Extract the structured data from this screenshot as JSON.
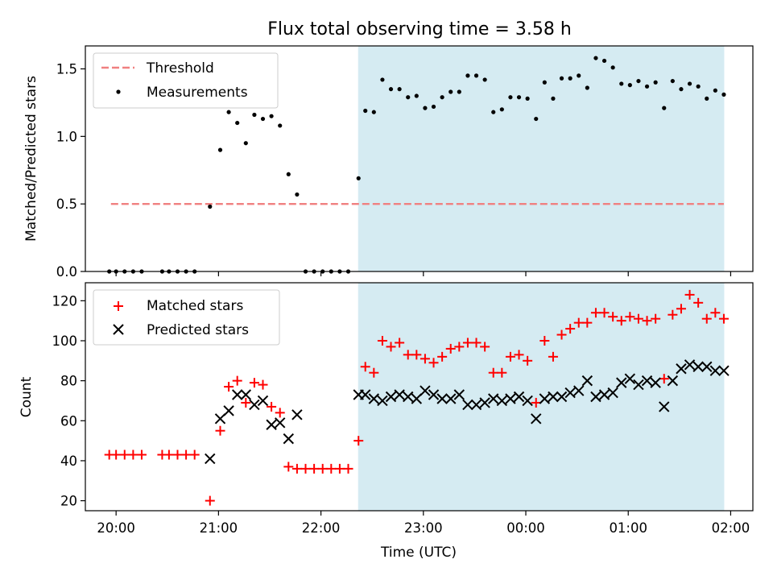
{
  "chart_data": [
    {
      "type": "scatter",
      "title": "Flux total observing time = 3.58 h",
      "ylabel": "Matched/Predicted stars",
      "xlabel": "",
      "ylim": [
        0,
        1.67
      ],
      "yticks": [
        0,
        0.5,
        1.0,
        1.5
      ],
      "ytick_labels": [
        "0.0",
        "0.5",
        "1.0",
        "1.5"
      ],
      "legend_position": "top-left",
      "shaded_span": {
        "start": "22:22",
        "end": "01:56",
        "color": "#add8e6"
      },
      "threshold": {
        "name": "Threshold",
        "value": 0.5,
        "x_start": "19:57",
        "x_end": "01:56",
        "color": "#f08080",
        "style": "dashed"
      },
      "series": [
        {
          "name": "Measurements",
          "marker": "dot",
          "color": "#000000",
          "x": [
            "19:56",
            "20:00",
            "20:05",
            "20:10",
            "20:15",
            "20:27",
            "20:31",
            "20:36",
            "20:41",
            "20:46",
            "20:55",
            "21:01",
            "21:06",
            "21:11",
            "21:16",
            "21:21",
            "21:26",
            "21:31",
            "21:36",
            "21:41",
            "21:46",
            "21:51",
            "21:56",
            "22:01",
            "22:06",
            "22:11",
            "22:16",
            "22:22",
            "22:26",
            "22:31",
            "22:36",
            "22:41",
            "22:46",
            "22:51",
            "22:56",
            "23:01",
            "23:06",
            "23:11",
            "23:16",
            "23:21",
            "23:26",
            "23:31",
            "23:36",
            "23:41",
            "23:46",
            "23:51",
            "23:56",
            "00:01",
            "00:06",
            "00:11",
            "00:16",
            "00:21",
            "00:26",
            "00:31",
            "00:36",
            "00:41",
            "00:46",
            "00:51",
            "00:56",
            "01:01",
            "01:06",
            "01:11",
            "01:16",
            "01:21",
            "01:26",
            "01:31",
            "01:36",
            "01:41",
            "01:46",
            "01:51",
            "01:56"
          ],
          "y": [
            0,
            0,
            0,
            0,
            0,
            0,
            0,
            0,
            0,
            0,
            0.48,
            0.9,
            1.18,
            1.1,
            0.95,
            1.16,
            1.13,
            1.15,
            1.08,
            0.72,
            0.57,
            0,
            0,
            0,
            0,
            0,
            0,
            0.69,
            1.19,
            1.18,
            1.42,
            1.35,
            1.35,
            1.29,
            1.3,
            1.21,
            1.22,
            1.29,
            1.33,
            1.33,
            1.45,
            1.45,
            1.42,
            1.18,
            1.2,
            1.29,
            1.29,
            1.28,
            1.13,
            1.4,
            1.28,
            1.43,
            1.43,
            1.45,
            1.36,
            1.58,
            1.56,
            1.51,
            1.39,
            1.38,
            1.41,
            1.37,
            1.4,
            1.21,
            1.41,
            1.35,
            1.39,
            1.37,
            1.28,
            1.34,
            1.31
          ]
        }
      ]
    },
    {
      "type": "scatter",
      "title": "",
      "ylabel": "Count",
      "xlabel": "Time (UTC)",
      "ylim": [
        15,
        129
      ],
      "yticks": [
        20,
        40,
        60,
        80,
        100,
        120
      ],
      "xlim": [
        "19:42",
        "02:13"
      ],
      "xticks": [
        "20:00",
        "21:00",
        "22:00",
        "23:00",
        "00:00",
        "01:00",
        "02:00"
      ],
      "legend_position": "top-left",
      "shaded_span": {
        "start": "22:22",
        "end": "01:56",
        "color": "#add8e6"
      },
      "series": [
        {
          "name": "Matched stars",
          "marker": "plus",
          "color": "#ff0000",
          "x": [
            "19:56",
            "20:00",
            "20:05",
            "20:10",
            "20:15",
            "20:27",
            "20:31",
            "20:36",
            "20:41",
            "20:46",
            "20:55",
            "21:01",
            "21:06",
            "21:11",
            "21:16",
            "21:21",
            "21:26",
            "21:31",
            "21:36",
            "21:41",
            "21:46",
            "21:51",
            "21:56",
            "22:01",
            "22:06",
            "22:11",
            "22:16",
            "22:22",
            "22:26",
            "22:31",
            "22:36",
            "22:41",
            "22:46",
            "22:51",
            "22:56",
            "23:01",
            "23:06",
            "23:11",
            "23:16",
            "23:21",
            "23:26",
            "23:31",
            "23:36",
            "23:41",
            "23:46",
            "23:51",
            "23:56",
            "00:01",
            "00:06",
            "00:11",
            "00:16",
            "00:21",
            "00:26",
            "00:31",
            "00:36",
            "00:41",
            "00:46",
            "00:51",
            "00:56",
            "01:01",
            "01:06",
            "01:11",
            "01:16",
            "01:21",
            "01:26",
            "01:31",
            "01:36",
            "01:41",
            "01:46",
            "01:51",
            "01:56"
          ],
          "y": [
            43,
            43,
            43,
            43,
            43,
            43,
            43,
            43,
            43,
            43,
            20,
            55,
            77,
            80,
            69,
            79,
            78,
            67,
            64,
            37,
            36,
            36,
            36,
            36,
            36,
            36,
            36,
            50,
            87,
            84,
            100,
            97,
            99,
            93,
            93,
            91,
            89,
            92,
            96,
            97,
            99,
            99,
            97,
            84,
            84,
            92,
            93,
            90,
            69,
            100,
            92,
            103,
            106,
            109,
            109,
            114,
            114,
            112,
            110,
            112,
            111,
            110,
            111,
            81,
            113,
            116,
            123,
            119,
            111,
            114,
            111
          ]
        },
        {
          "name": "Predicted stars",
          "marker": "x",
          "color": "#000000",
          "x": [
            "20:55",
            "21:01",
            "21:06",
            "21:11",
            "21:16",
            "21:21",
            "21:26",
            "21:31",
            "21:36",
            "21:41",
            "21:46",
            "22:22",
            "22:26",
            "22:31",
            "22:36",
            "22:41",
            "22:46",
            "22:51",
            "22:56",
            "23:01",
            "23:06",
            "23:11",
            "23:16",
            "23:21",
            "23:26",
            "23:31",
            "23:36",
            "23:41",
            "23:46",
            "23:51",
            "23:56",
            "00:01",
            "00:06",
            "00:11",
            "00:16",
            "00:21",
            "00:26",
            "00:31",
            "00:36",
            "00:41",
            "00:46",
            "00:51",
            "00:56",
            "01:01",
            "01:06",
            "01:11",
            "01:16",
            "01:21",
            "01:26",
            "01:31",
            "01:36",
            "01:41",
            "01:46",
            "01:51",
            "01:56"
          ],
          "y": [
            41,
            61,
            65,
            73,
            73,
            68,
            70,
            58,
            59,
            51,
            63,
            73,
            73,
            71,
            70,
            72,
            73,
            72,
            71,
            75,
            73,
            71,
            71,
            73,
            68,
            68,
            69,
            71,
            70,
            71,
            72,
            70,
            61,
            71,
            72,
            72,
            74,
            75,
            80,
            72,
            73,
            74,
            79,
            81,
            78,
            80,
            79,
            67,
            80,
            86,
            88,
            87,
            87,
            85,
            85
          ]
        }
      ]
    }
  ]
}
